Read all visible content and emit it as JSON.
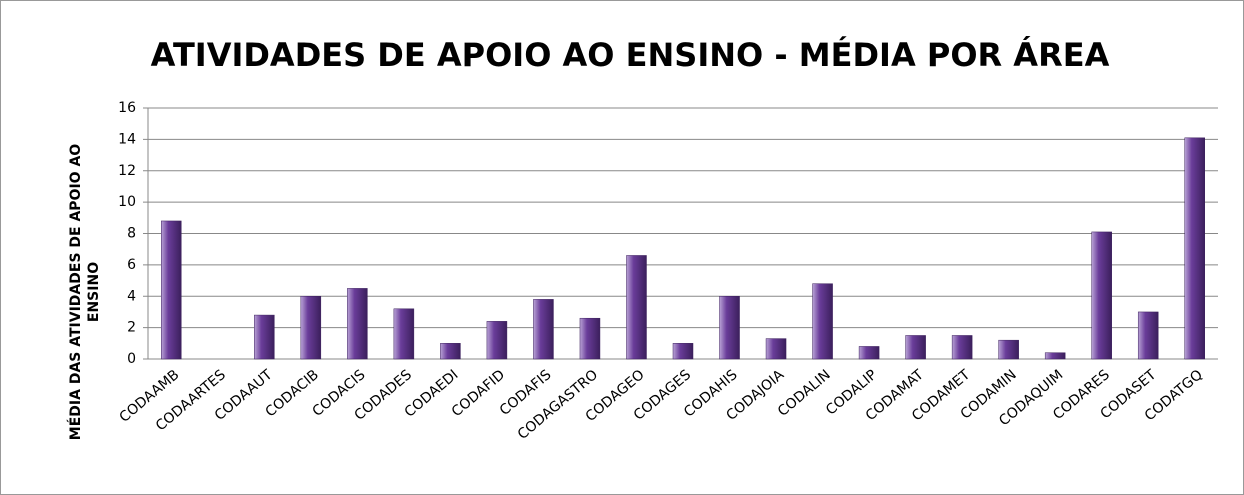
{
  "chart_data": {
    "type": "bar",
    "title": "ATIVIDADES DE APOIO AO ENSINO - MÉDIA POR ÁREA",
    "ylabel": [
      "MÉDIA DAS ATIVIDADES  DE APOIO AO",
      "ENSINO"
    ],
    "categories": [
      "CODAAMB",
      "CODAARTES",
      "CODAAUT",
      "CODACIB",
      "CODACIS",
      "CODADES",
      "CODAEDI",
      "CODAFID",
      "CODAFIS",
      "CODAGASTRO",
      "CODAGEO",
      "CODAGES",
      "CODAHIS",
      "CODAJOIA",
      "CODALIN",
      "CODALIP",
      "CODAMAT",
      "CODAMET",
      "CODAMIN",
      "CODAQUIM",
      "CODARES",
      "CODASET",
      "CODATGQ"
    ],
    "values": [
      8.8,
      0,
      2.8,
      4.0,
      4.5,
      3.2,
      1.0,
      2.4,
      3.8,
      2.6,
      6.6,
      1.0,
      4.0,
      1.3,
      4.8,
      0.8,
      1.5,
      1.5,
      1.2,
      0.4,
      8.1,
      3.0,
      14.1
    ],
    "color": "#6a3d9a",
    "ylim": [
      0,
      16
    ],
    "yticks": [
      0,
      2,
      4,
      6,
      8,
      10,
      12,
      14,
      16
    ],
    "grid": true
  }
}
